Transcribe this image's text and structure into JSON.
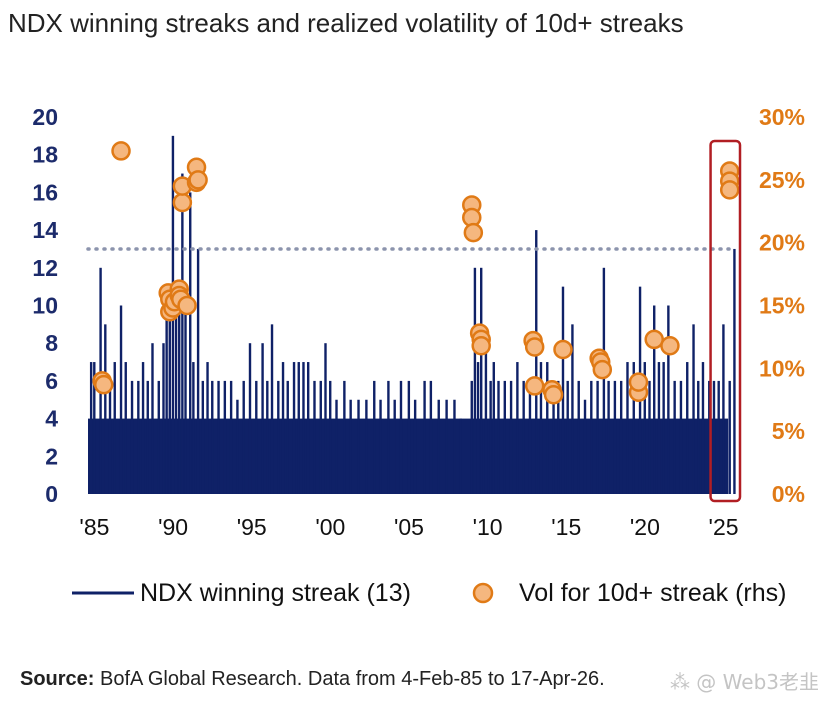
{
  "chart_data": {
    "type": "bar-scatter-combo",
    "title": "NDX winning streaks and realized volatility of 10d+ streaks",
    "x_range": [
      1985.1,
      2026.3
    ],
    "x_ticks": [
      1985,
      1990,
      1995,
      2000,
      2005,
      2010,
      2015,
      2020,
      2025
    ],
    "x_tick_labels": [
      "'85",
      "'90",
      "'95",
      "'00",
      "'05",
      "'10",
      "'15",
      "'20",
      "'25"
    ],
    "y_left": {
      "range": [
        0,
        20
      ],
      "ticks": [
        0,
        2,
        4,
        6,
        8,
        10,
        12,
        14,
        16,
        18,
        20
      ],
      "tick_labels": [
        "0",
        "2",
        "4",
        "6",
        "8",
        "10",
        "12",
        "14",
        "16",
        "18",
        "20"
      ]
    },
    "y_right": {
      "range": [
        0,
        30
      ],
      "ticks": [
        0,
        5,
        10,
        15,
        20,
        25,
        30
      ],
      "tick_labels": [
        "0%",
        "5%",
        "10%",
        "15%",
        "20%",
        "25%",
        "30%"
      ]
    },
    "reference_line": {
      "value": 13,
      "axis": "left",
      "style": "dotted"
    },
    "highlight_window": {
      "from": 2025.7,
      "to": 2026.3
    },
    "bars_band": {
      "x_from": 1985.1,
      "x_to": 2025.8,
      "base": 4
    },
    "streak_spikes": [
      [
        1985.3,
        7
      ],
      [
        1985.5,
        7
      ],
      [
        1985.9,
        12
      ],
      [
        1986.2,
        9
      ],
      [
        1986.5,
        6
      ],
      [
        1986.8,
        7
      ],
      [
        1987.2,
        10
      ],
      [
        1987.5,
        7
      ],
      [
        1987.9,
        6
      ],
      [
        1988.3,
        6
      ],
      [
        1988.6,
        7
      ],
      [
        1988.9,
        6
      ],
      [
        1989.2,
        8
      ],
      [
        1989.6,
        6
      ],
      [
        1989.9,
        8
      ],
      [
        1990.1,
        10
      ],
      [
        1990.3,
        11
      ],
      [
        1990.5,
        19
      ],
      [
        1990.7,
        10
      ],
      [
        1990.9,
        11
      ],
      [
        1991.1,
        17
      ],
      [
        1991.3,
        10
      ],
      [
        1991.6,
        16
      ],
      [
        1991.8,
        7
      ],
      [
        1992.1,
        13
      ],
      [
        1992.4,
        6
      ],
      [
        1992.7,
        7
      ],
      [
        1993.0,
        6
      ],
      [
        1993.4,
        6
      ],
      [
        1993.8,
        6
      ],
      [
        1994.2,
        6
      ],
      [
        1994.6,
        5
      ],
      [
        1995.0,
        6
      ],
      [
        1995.4,
        8
      ],
      [
        1995.8,
        6
      ],
      [
        1996.2,
        8
      ],
      [
        1996.5,
        6
      ],
      [
        1996.8,
        9
      ],
      [
        1997.2,
        6
      ],
      [
        1997.5,
        7
      ],
      [
        1997.8,
        6
      ],
      [
        1998.2,
        7
      ],
      [
        1998.5,
        7
      ],
      [
        1998.8,
        7
      ],
      [
        1999.1,
        7
      ],
      [
        1999.5,
        6
      ],
      [
        1999.9,
        6
      ],
      [
        2000.2,
        8
      ],
      [
        2000.5,
        6
      ],
      [
        2000.9,
        5
      ],
      [
        2001.4,
        6
      ],
      [
        2001.8,
        5
      ],
      [
        2002.3,
        5
      ],
      [
        2002.8,
        5
      ],
      [
        2003.3,
        6
      ],
      [
        2003.7,
        5
      ],
      [
        2004.2,
        6
      ],
      [
        2004.6,
        5
      ],
      [
        2005.0,
        6
      ],
      [
        2005.5,
        6
      ],
      [
        2005.9,
        5
      ],
      [
        2006.5,
        6
      ],
      [
        2006.9,
        6
      ],
      [
        2007.4,
        5
      ],
      [
        2007.9,
        5
      ],
      [
        2008.4,
        5
      ],
      [
        2008.8,
        4
      ],
      [
        2009.5,
        6
      ],
      [
        2009.7,
        12
      ],
      [
        2009.9,
        7
      ],
      [
        2010.1,
        12
      ],
      [
        2010.4,
        8
      ],
      [
        2010.7,
        6
      ],
      [
        2010.9,
        7
      ],
      [
        2011.2,
        6
      ],
      [
        2011.6,
        6
      ],
      [
        2012.0,
        6
      ],
      [
        2012.4,
        7
      ],
      [
        2012.8,
        6
      ],
      [
        2013.2,
        6
      ],
      [
        2013.6,
        14
      ],
      [
        2013.9,
        7
      ],
      [
        2014.3,
        7
      ],
      [
        2014.7,
        6
      ],
      [
        2015.0,
        6
      ],
      [
        2015.3,
        11
      ],
      [
        2015.6,
        6
      ],
      [
        2015.9,
        9
      ],
      [
        2016.3,
        6
      ],
      [
        2016.7,
        5
      ],
      [
        2017.1,
        6
      ],
      [
        2017.5,
        6
      ],
      [
        2017.9,
        12
      ],
      [
        2018.2,
        6
      ],
      [
        2018.6,
        6
      ],
      [
        2019.0,
        6
      ],
      [
        2019.4,
        7
      ],
      [
        2019.8,
        7
      ],
      [
        2020.2,
        11
      ],
      [
        2020.5,
        7
      ],
      [
        2020.8,
        6
      ],
      [
        2021.1,
        10
      ],
      [
        2021.4,
        7
      ],
      [
        2021.7,
        7
      ],
      [
        2022.0,
        10
      ],
      [
        2022.4,
        6
      ],
      [
        2022.8,
        6
      ],
      [
        2023.2,
        7
      ],
      [
        2023.6,
        9
      ],
      [
        2023.9,
        6
      ],
      [
        2024.2,
        7
      ],
      [
        2024.6,
        6
      ],
      [
        2024.9,
        6
      ],
      [
        2025.2,
        6
      ],
      [
        2025.5,
        9
      ],
      [
        2025.9,
        6
      ],
      [
        2026.2,
        13
      ]
    ],
    "series": [
      {
        "name": "NDX winning streak (13)",
        "axis": "left",
        "type": "bar",
        "color": "#0f2167"
      },
      {
        "name": "Vol for 10d+ streak (rhs)",
        "axis": "right",
        "type": "scatter",
        "color": "#e07a16",
        "points": [
          [
            1986.0,
            9.0
          ],
          [
            1986.1,
            8.7
          ],
          [
            1987.2,
            27.3
          ],
          [
            1990.2,
            16.0
          ],
          [
            1990.3,
            15.5
          ],
          [
            1990.3,
            14.5
          ],
          [
            1990.5,
            14.8
          ],
          [
            1990.6,
            15.3
          ],
          [
            1990.9,
            16.3
          ],
          [
            1990.9,
            15.8
          ],
          [
            1991.0,
            15.5
          ],
          [
            1991.1,
            23.2
          ],
          [
            1991.1,
            24.5
          ],
          [
            1991.4,
            15.0
          ],
          [
            1992.0,
            26.0
          ],
          [
            1992.0,
            24.8
          ],
          [
            1992.1,
            25.0
          ],
          [
            2009.5,
            23.0
          ],
          [
            2009.5,
            22.0
          ],
          [
            2009.6,
            20.8
          ],
          [
            2010.0,
            12.8
          ],
          [
            2010.1,
            12.3
          ],
          [
            2010.1,
            11.8
          ],
          [
            2013.4,
            12.2
          ],
          [
            2013.5,
            11.7
          ],
          [
            2013.5,
            8.6
          ],
          [
            2014.6,
            8.3
          ],
          [
            2014.7,
            7.9
          ],
          [
            2015.3,
            11.5
          ],
          [
            2017.6,
            10.8
          ],
          [
            2017.7,
            10.5
          ],
          [
            2017.8,
            9.9
          ],
          [
            2020.1,
            8.1
          ],
          [
            2020.1,
            8.9
          ],
          [
            2021.1,
            12.3
          ],
          [
            2022.1,
            11.8
          ],
          [
            2025.9,
            25.7
          ],
          [
            2025.9,
            24.9
          ],
          [
            2025.9,
            24.2
          ]
        ]
      }
    ]
  },
  "legend": {
    "line_label": "NDX winning streak (13)",
    "marker_label": "Vol for 10d+ streak (rhs)"
  },
  "source": {
    "label": "Source:",
    "text": " BofA Global Research. Data from 4-Feb-85 to 17-Apr-26."
  },
  "watermark": "⁂ @ Web3老韭",
  "colors": {
    "bar": "#0f2167",
    "marker_fill": "#f5b77f",
    "marker_stroke": "#e07a16",
    "left_axis_text": "#1c2b6b",
    "right_axis_text": "#e07a16",
    "reference_line": "#8c94ad",
    "highlight_box": "#b11e23"
  }
}
